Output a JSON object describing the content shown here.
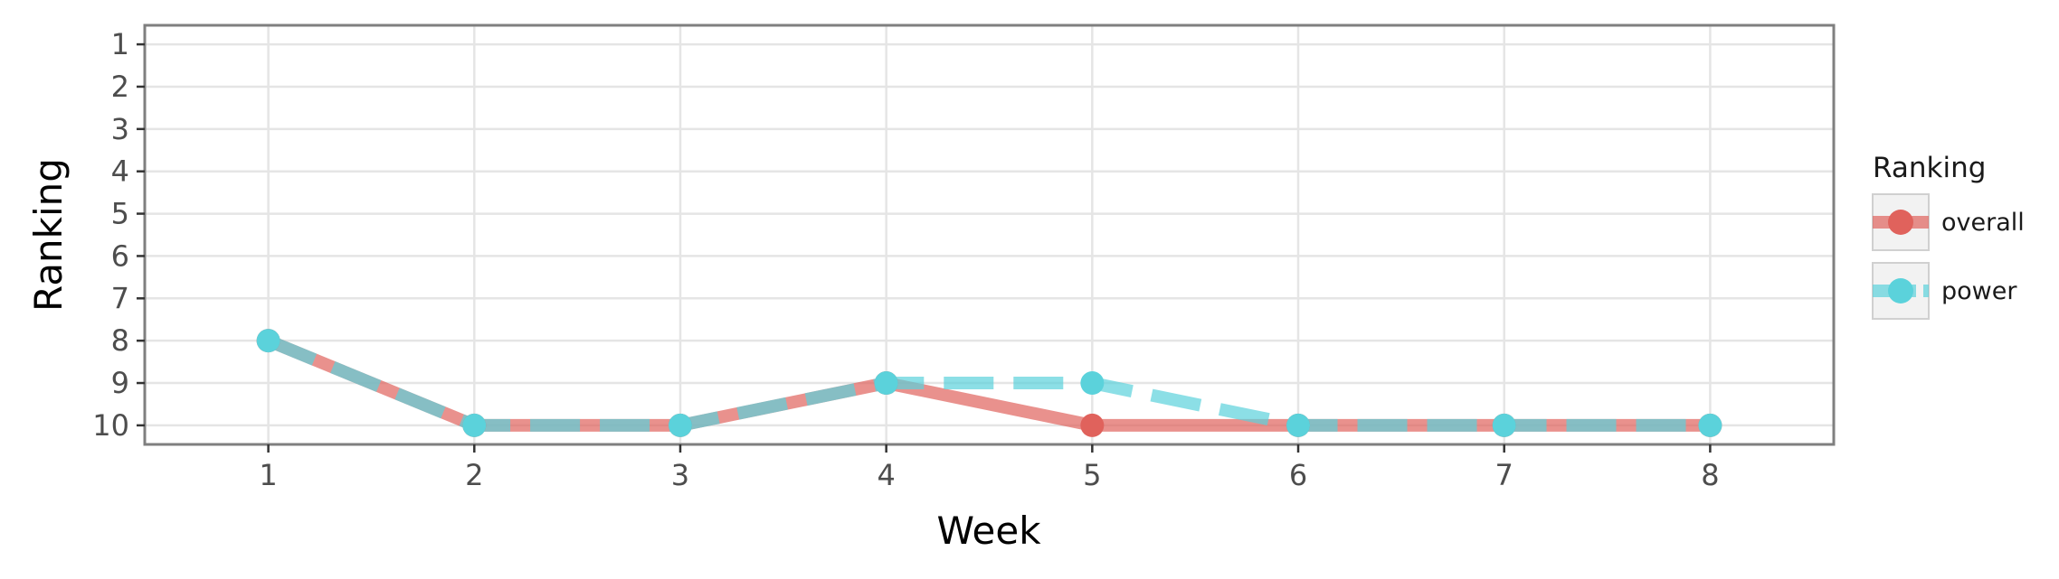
{
  "chart_data": {
    "type": "line",
    "title": "",
    "xlabel": "Week",
    "ylabel": "Ranking",
    "x": [
      1,
      2,
      3,
      4,
      5,
      6,
      7,
      8
    ],
    "xlim": [
      0.4,
      8.6
    ],
    "ylim": [
      10.45,
      0.55
    ],
    "y_reversed": true,
    "x_ticks": [
      1,
      2,
      3,
      4,
      5,
      6,
      7,
      8
    ],
    "y_ticks": [
      1,
      2,
      3,
      4,
      5,
      6,
      7,
      8,
      9,
      10
    ],
    "grid": true,
    "legend_position": "right",
    "legend_title": "Ranking",
    "series": [
      {
        "name": "overall",
        "values": [
          8,
          10,
          10,
          9,
          10,
          10,
          10,
          10
        ],
        "color": "#E0625C",
        "line_style": "solid"
      },
      {
        "name": "power",
        "values": [
          8,
          10,
          10,
          9,
          9,
          10,
          10,
          10
        ],
        "color": "#5BD2DB",
        "line_style": "dashed"
      }
    ]
  }
}
